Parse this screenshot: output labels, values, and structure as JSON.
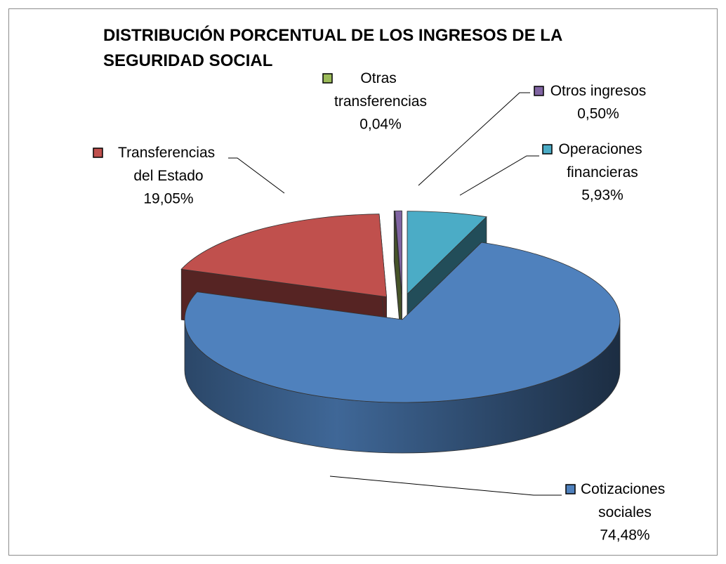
{
  "chart_data": {
    "type": "pie3d",
    "title": "DISTRIBUCIÓN PORCENTUAL DE LOS INGRESOS DE LA SEGURIDAD SOCIAL",
    "categories": [
      "Cotizaciones sociales",
      "Transferencias del Estado",
      "Otras transferencias",
      "Otros ingresos",
      "Operaciones financieras"
    ],
    "values": [
      74.48,
      19.05,
      0.04,
      0.5,
      5.93
    ],
    "value_labels": [
      "74,48%",
      "19,05%",
      "0,04%",
      "0,50%",
      "5,93%"
    ],
    "colors": [
      "#4f81bd",
      "#c0504d",
      "#9bbb59",
      "#8064a2",
      "#4bacc6"
    ]
  }
}
